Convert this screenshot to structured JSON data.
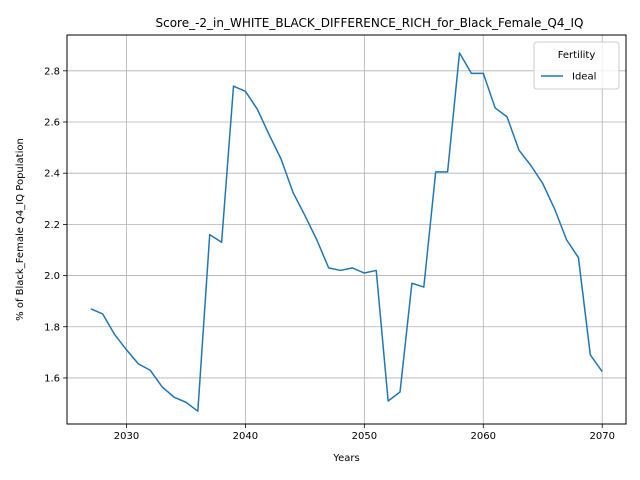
{
  "chart_data": {
    "type": "line",
    "title": "Score_-2_in_WHITE_BLACK_DIFFERENCE_RICH_for_Black_Female_Q4_IQ",
    "xlabel": "Years",
    "ylabel": "% of Black_Female Q4_IQ Population",
    "xlim": [
      2025,
      2072
    ],
    "ylim": [
      1.42,
      2.94
    ],
    "xticks": [
      2030,
      2040,
      2050,
      2060,
      2070
    ],
    "yticks": [
      1.6,
      1.8,
      2.0,
      2.2,
      2.4,
      2.6,
      2.8
    ],
    "ytick_labels": [
      "1.6",
      "1.8",
      "2.0",
      "2.2",
      "2.4",
      "2.6",
      "2.8"
    ],
    "grid": true,
    "legend": {
      "title": "Fertility",
      "placement": "top-right"
    },
    "series": [
      {
        "name": "Ideal",
        "color": "#1f77b4",
        "x": [
          2027,
          2028,
          2029,
          2030,
          2031,
          2032,
          2033,
          2034,
          2035,
          2036,
          2037,
          2038,
          2039,
          2040,
          2041,
          2042,
          2043,
          2044,
          2045,
          2046,
          2047,
          2048,
          2049,
          2050,
          2051,
          2052,
          2053,
          2054,
          2055,
          2056,
          2057,
          2058,
          2059,
          2060,
          2061,
          2062,
          2063,
          2064,
          2065,
          2066,
          2067,
          2068,
          2069,
          2070
        ],
        "y": [
          1.87,
          1.85,
          1.77,
          1.71,
          1.655,
          1.63,
          1.565,
          1.525,
          1.505,
          1.47,
          2.16,
          2.13,
          2.74,
          2.72,
          2.65,
          2.55,
          2.455,
          2.325,
          2.235,
          2.14,
          2.03,
          2.02,
          2.03,
          2.01,
          2.02,
          1.51,
          1.545,
          1.97,
          1.955,
          2.405,
          2.405,
          2.87,
          2.79,
          2.79,
          2.655,
          2.62,
          2.49,
          2.43,
          2.36,
          2.26,
          2.14,
          2.07,
          1.69,
          1.625
        ]
      }
    ]
  }
}
